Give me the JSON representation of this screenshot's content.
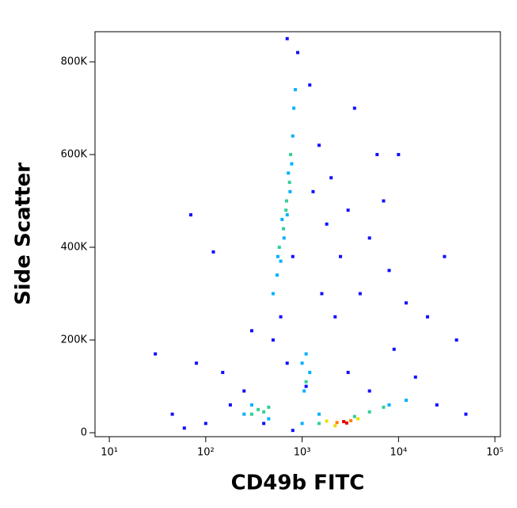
{
  "chart_data": {
    "type": "scatter",
    "x_label": "CD49b FITC",
    "y_label": "Side Scatter",
    "x_log": true,
    "xlim": [
      7.1,
      114000
    ],
    "ylim": [
      -8500,
      865000
    ],
    "xticks": [
      {
        "value": 10,
        "label": "10¹"
      },
      {
        "value": 100,
        "label": "10²"
      },
      {
        "value": 1000,
        "label": "10³"
      },
      {
        "value": 10000,
        "label": "10⁴"
      },
      {
        "value": 100000,
        "label": "10⁵"
      }
    ],
    "yticks": [
      0,
      {
        "value": 200000,
        "label": "200K"
      },
      {
        "value": 400000,
        "label": "400K"
      },
      {
        "value": 600000,
        "label": "600K"
      },
      {
        "value": 800000,
        "label": "800K"
      }
    ],
    "series": [
      {
        "x": [
          30,
          45,
          70,
          80,
          120,
          150,
          180,
          100,
          60,
          250,
          300,
          1200,
          1500,
          2000,
          3000,
          5000,
          8000,
          12000,
          20000,
          30000,
          3500,
          6000,
          15000,
          40000,
          25000,
          50000,
          9000,
          4000,
          2500,
          1800,
          1300,
          7000,
          10000,
          2200,
          1600,
          900,
          700,
          800,
          600,
          700,
          500,
          1100,
          3000,
          5000,
          400,
          800,
          500,
          550,
          600,
          650,
          700,
          750,
          780,
          800,
          820,
          850,
          560,
          620,
          720,
          1000,
          1100,
          1200,
          1050,
          300,
          250,
          450,
          1500,
          8000,
          12000,
          1000,
          580,
          640,
          690,
          740,
          760,
          680,
          350,
          400,
          300,
          450,
          1100,
          5000,
          7000,
          3500,
          1500,
          1800,
          3800,
          2200,
          2300,
          3200,
          2700,
          2900
        ],
        "values": [
          170000,
          40000,
          470000,
          150000,
          390000,
          130000,
          60000,
          20000,
          10000,
          90000,
          220000,
          750000,
          620000,
          550000,
          480000,
          420000,
          350000,
          280000,
          250000,
          380000,
          700000,
          600000,
          120000,
          200000,
          60000,
          40000,
          180000,
          300000,
          380000,
          450000,
          520000,
          500000,
          600000,
          250000,
          300000,
          820000,
          850000,
          380000,
          250000,
          150000,
          200000,
          100000,
          130000,
          90000,
          20000,
          5000,
          300000,
          340000,
          370000,
          420000,
          470000,
          520000,
          580000,
          640000,
          700000,
          740000,
          380000,
          460000,
          560000,
          150000,
          170000,
          130000,
          90000,
          60000,
          40000,
          30000,
          40000,
          60000,
          70000,
          20000,
          400000,
          440000,
          500000,
          540000,
          600000,
          480000,
          50000,
          45000,
          40000,
          55000,
          110000,
          45000,
          55000,
          35000,
          20000,
          25000,
          30000,
          15000,
          22000,
          26000,
          24000,
          21000
        ],
        "colors": [
          "#1010ff",
          "#1010ff",
          "#1010ff",
          "#1010ff",
          "#1010ff",
          "#1010ff",
          "#1010ff",
          "#1010ff",
          "#1010ff",
          "#1010ff",
          "#1010ff",
          "#1010ff",
          "#1010ff",
          "#1010ff",
          "#1010ff",
          "#1010ff",
          "#1010ff",
          "#1010ff",
          "#1010ff",
          "#1010ff",
          "#1010ff",
          "#1010ff",
          "#1010ff",
          "#1010ff",
          "#1010ff",
          "#1010ff",
          "#1010ff",
          "#1010ff",
          "#1010ff",
          "#1010ff",
          "#1010ff",
          "#1010ff",
          "#1010ff",
          "#1010ff",
          "#1010ff",
          "#1010ff",
          "#1010ff",
          "#1010ff",
          "#1010ff",
          "#1010ff",
          "#1010ff",
          "#1010ff",
          "#1010ff",
          "#1010ff",
          "#1010ff",
          "#1010ff",
          "#00b0ff",
          "#00b0ff",
          "#00b0ff",
          "#00b0ff",
          "#00b0ff",
          "#00b0ff",
          "#00b0ff",
          "#00b0ff",
          "#00b0ff",
          "#00b0ff",
          "#00b0ff",
          "#00b0ff",
          "#00b0ff",
          "#00b0ff",
          "#00b0ff",
          "#00b0ff",
          "#00b0ff",
          "#00b0ff",
          "#00b0ff",
          "#00b0ff",
          "#00b0ff",
          "#00b0ff",
          "#00b0ff",
          "#00b0ff",
          "#30d090",
          "#30d090",
          "#30d090",
          "#30d090",
          "#30d090",
          "#30d090",
          "#30d090",
          "#30d090",
          "#30d090",
          "#30d090",
          "#30d090",
          "#30d090",
          "#30d090",
          "#30d090",
          "#30d090",
          "#e8e000",
          "#e8e000",
          "#e8e000",
          "#ff8000",
          "#ff8000",
          "#e00000",
          "#e00000"
        ]
      }
    ]
  }
}
